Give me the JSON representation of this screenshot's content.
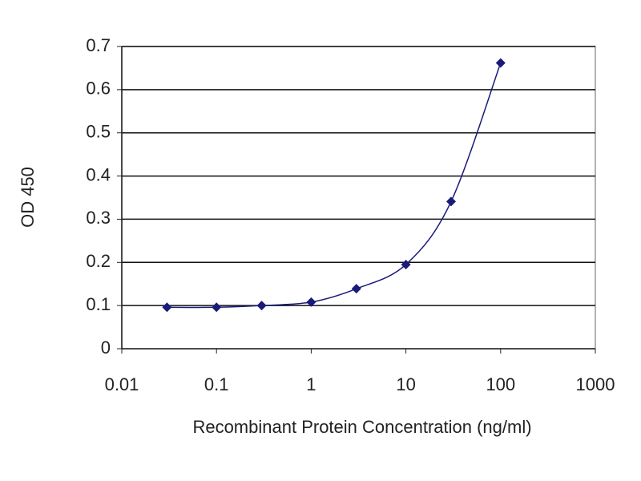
{
  "chart_data": {
    "type": "line",
    "xlabel": "Recombinant Protein Concentration (ng/ml)",
    "ylabel": "OD 450",
    "x": [
      0.03,
      0.1,
      0.3,
      1,
      3,
      10,
      30,
      100
    ],
    "values": [
      0.096,
      0.096,
      0.1,
      0.108,
      0.139,
      0.195,
      0.341,
      0.662
    ],
    "color": "#1a1a7a",
    "xscale": "log",
    "xlim": [
      0.01,
      1000
    ],
    "xticks": [
      0.01,
      0.1,
      1,
      10,
      100,
      1000
    ],
    "ylim": [
      0,
      0.7
    ],
    "yticks": [
      0,
      0.1,
      0.2,
      0.3,
      0.4,
      0.5,
      0.6,
      0.7
    ],
    "grid": true
  }
}
